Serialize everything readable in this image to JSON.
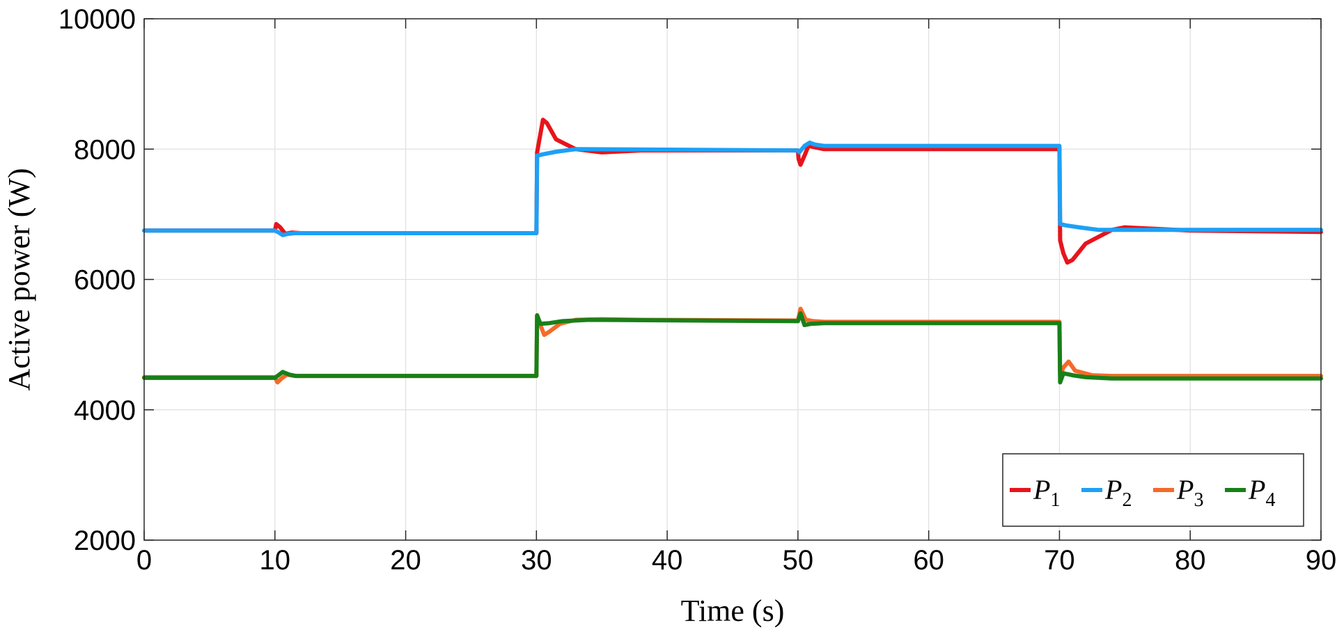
{
  "chart_data": {
    "type": "line",
    "xlabel": "Time (s)",
    "ylabel": "Active power (W)",
    "xlim": [
      0,
      90
    ],
    "ylim": [
      2000,
      10000
    ],
    "xticks": [
      0,
      10,
      20,
      30,
      40,
      50,
      60,
      70,
      80,
      90
    ],
    "xtick_labels": [
      "0",
      "10",
      "20",
      "30",
      "40",
      "50",
      "60",
      "70",
      "80",
      "90"
    ],
    "yticks": [
      2000,
      4000,
      6000,
      8000,
      10000
    ],
    "ytick_labels": [
      "2000",
      "4000",
      "6000",
      "8000",
      "10000"
    ],
    "grid": true,
    "legend_position": "bottom-right",
    "series": [
      {
        "name": "P",
        "subscript": "1",
        "color": "#e8141b",
        "points": [
          [
            0,
            6750
          ],
          [
            10,
            6750
          ],
          [
            10.1,
            6850
          ],
          [
            10.4,
            6800
          ],
          [
            10.8,
            6700
          ],
          [
            11.3,
            6720
          ],
          [
            12,
            6710
          ],
          [
            30,
            6710
          ],
          [
            30.05,
            7950
          ],
          [
            30.5,
            8450
          ],
          [
            30.8,
            8400
          ],
          [
            31.5,
            8150
          ],
          [
            33,
            8000
          ],
          [
            35,
            7950
          ],
          [
            38,
            7980
          ],
          [
            50,
            7980
          ],
          [
            50.05,
            7850
          ],
          [
            50.2,
            7760
          ],
          [
            50.5,
            7900
          ],
          [
            50.8,
            8050
          ],
          [
            51.5,
            8020
          ],
          [
            52,
            8000
          ],
          [
            70,
            8000
          ],
          [
            70.05,
            6600
          ],
          [
            70.3,
            6400
          ],
          [
            70.6,
            6260
          ],
          [
            71,
            6300
          ],
          [
            72,
            6550
          ],
          [
            74,
            6760
          ],
          [
            75,
            6800
          ],
          [
            77,
            6780
          ],
          [
            80,
            6750
          ],
          [
            90,
            6730
          ]
        ]
      },
      {
        "name": "P",
        "subscript": "2",
        "color": "#1ea0f5",
        "points": [
          [
            0,
            6750
          ],
          [
            10,
            6750
          ],
          [
            10.3,
            6720
          ],
          [
            10.6,
            6680
          ],
          [
            11,
            6700
          ],
          [
            11.5,
            6710
          ],
          [
            30,
            6710
          ],
          [
            30.05,
            7900
          ],
          [
            30.5,
            7920
          ],
          [
            31.5,
            7960
          ],
          [
            33,
            8000
          ],
          [
            50,
            7980
          ],
          [
            50.1,
            7950
          ],
          [
            50.5,
            8050
          ],
          [
            50.9,
            8100
          ],
          [
            51.3,
            8070
          ],
          [
            52,
            8050
          ],
          [
            70,
            8050
          ],
          [
            70.05,
            6850
          ],
          [
            70.5,
            6830
          ],
          [
            71.5,
            6800
          ],
          [
            73,
            6760
          ],
          [
            90,
            6760
          ]
        ]
      },
      {
        "name": "P",
        "subscript": "3",
        "color": "#f46a2a",
        "points": [
          [
            0,
            4500
          ],
          [
            10,
            4500
          ],
          [
            10.2,
            4420
          ],
          [
            10.5,
            4480
          ],
          [
            10.9,
            4540
          ],
          [
            11.5,
            4520
          ],
          [
            30,
            4520
          ],
          [
            30.05,
            5450
          ],
          [
            30.3,
            5300
          ],
          [
            30.6,
            5150
          ],
          [
            31,
            5200
          ],
          [
            31.8,
            5320
          ],
          [
            33,
            5380
          ],
          [
            35,
            5390
          ],
          [
            38,
            5380
          ],
          [
            50,
            5370
          ],
          [
            50.2,
            5550
          ],
          [
            50.6,
            5380
          ],
          [
            51.2,
            5360
          ],
          [
            52,
            5350
          ],
          [
            70,
            5350
          ],
          [
            70.05,
            4520
          ],
          [
            70.3,
            4650
          ],
          [
            70.7,
            4740
          ],
          [
            71.2,
            4600
          ],
          [
            72.5,
            4530
          ],
          [
            74,
            4520
          ],
          [
            90,
            4520
          ]
        ]
      },
      {
        "name": "P",
        "subscript": "4",
        "color": "#188018",
        "points": [
          [
            0,
            4490
          ],
          [
            10,
            4490
          ],
          [
            10.2,
            4520
          ],
          [
            10.6,
            4580
          ],
          [
            11.1,
            4540
          ],
          [
            11.6,
            4520
          ],
          [
            30,
            4520
          ],
          [
            30.05,
            5450
          ],
          [
            30.3,
            5320
          ],
          [
            31,
            5330
          ],
          [
            32,
            5360
          ],
          [
            34,
            5380
          ],
          [
            50,
            5360
          ],
          [
            50.2,
            5480
          ],
          [
            50.5,
            5300
          ],
          [
            51,
            5320
          ],
          [
            52,
            5330
          ],
          [
            70,
            5330
          ],
          [
            70.05,
            4420
          ],
          [
            70.3,
            4560
          ],
          [
            71,
            4530
          ],
          [
            72,
            4500
          ],
          [
            74,
            4480
          ],
          [
            90,
            4480
          ]
        ]
      }
    ]
  }
}
